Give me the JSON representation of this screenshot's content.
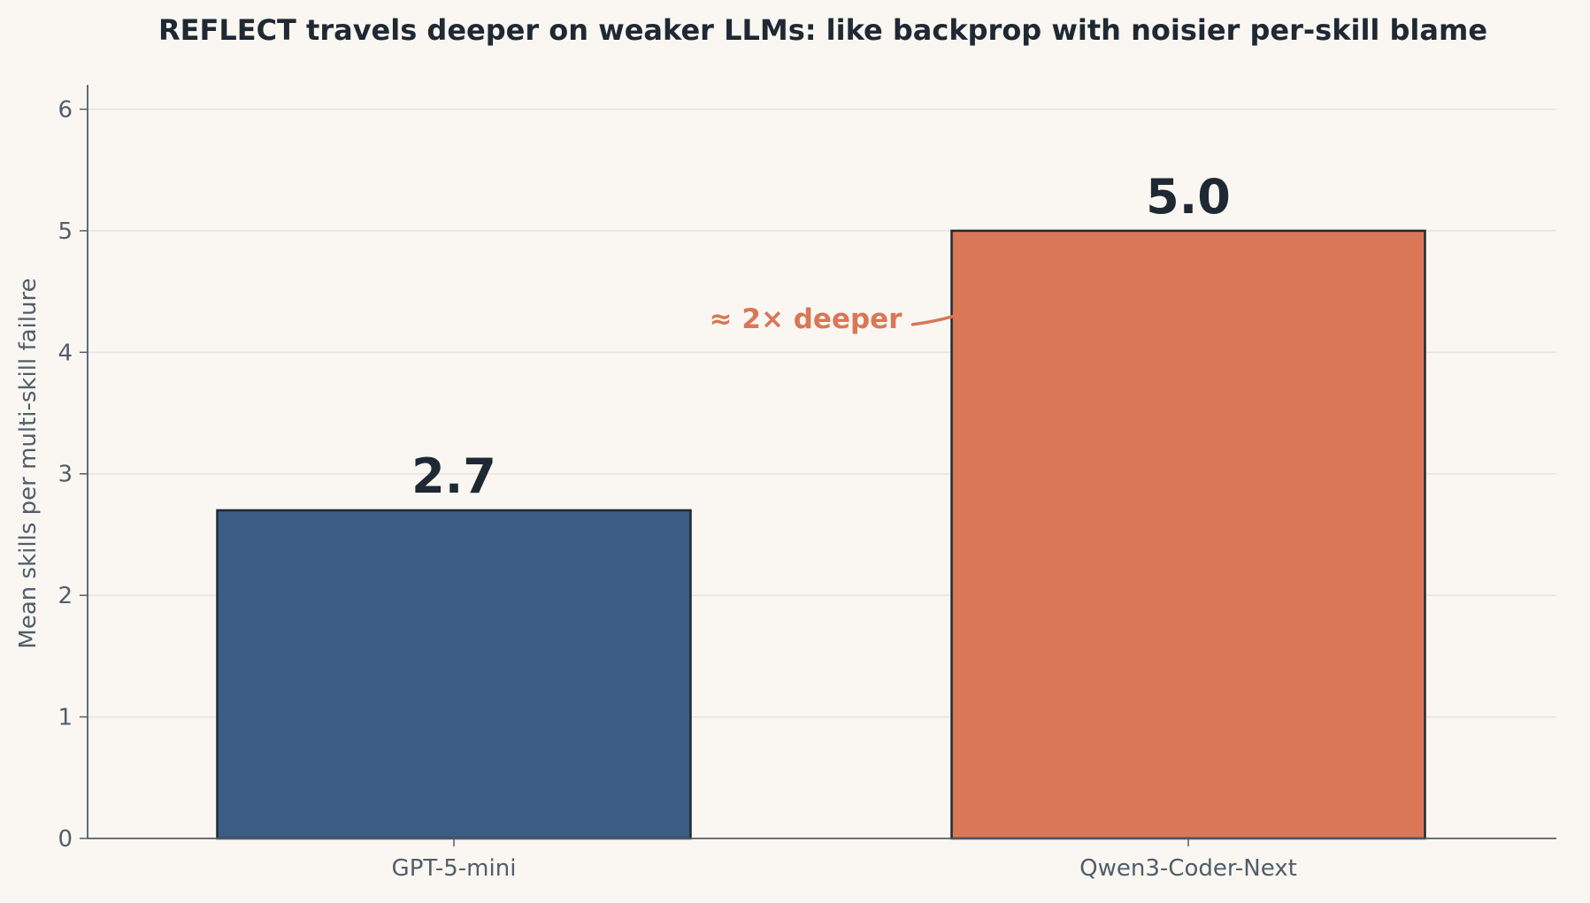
{
  "chart_data": {
    "type": "bar",
    "title": "REFLECT travels deeper on weaker LLMs: like backprop with noisier per-skill blame",
    "xlabel": "",
    "ylabel": "Mean skills per multi-skill failure",
    "categories": [
      "GPT-5-mini",
      "Qwen3-Coder-Next"
    ],
    "values": [
      2.7,
      5.0
    ],
    "value_labels": [
      "2.7",
      "5.0"
    ],
    "ylim": [
      0,
      6.2
    ],
    "yticks": [
      0,
      1,
      2,
      3,
      4,
      5,
      6
    ],
    "grid": "horizontal",
    "annotation": {
      "text": "≈ 2× deeper",
      "target_category": "Qwen3-Coder-Next",
      "target_value": 4.28
    }
  },
  "colors": {
    "background": "#faf7f2",
    "bars": [
      "#3b5c85",
      "#d97757"
    ],
    "bar_edge": "#1f2933",
    "annotation": "#d97757",
    "title": "#1f2933",
    "axis_text": "#525d69",
    "grid": "#e6e2dc"
  }
}
